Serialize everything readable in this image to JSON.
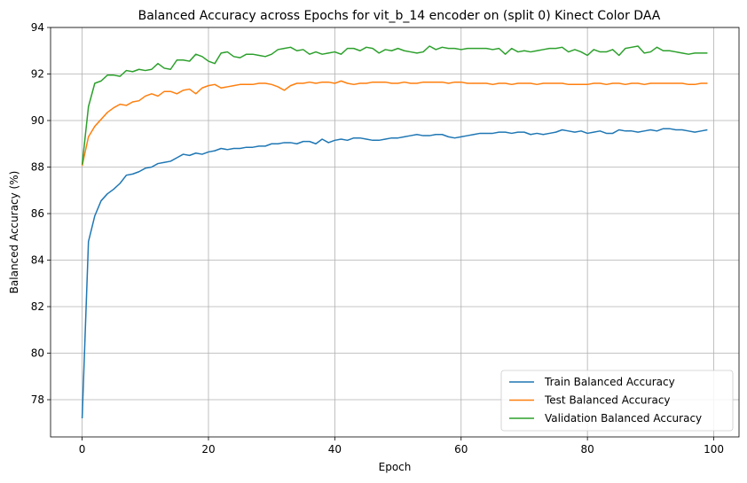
{
  "chart_data": {
    "type": "line",
    "title": "Balanced Accuracy across Epochs for vit_b_14 encoder on (split 0) Kinect Color DAA",
    "xlabel": "Epoch",
    "ylabel": "Balanced Accuracy (%)",
    "xlim": [
      -5,
      104
    ],
    "ylim": [
      76.4,
      94
    ],
    "xticks": [
      0,
      20,
      40,
      60,
      80,
      100
    ],
    "yticks": [
      78,
      80,
      82,
      84,
      86,
      88,
      90,
      92,
      94
    ],
    "grid": true,
    "legend_position": "lower-right",
    "colors": {
      "train": "#1f77b4",
      "test": "#ff7f0e",
      "validation": "#2ca02c"
    },
    "series": [
      {
        "name": "Train Balanced Accuracy",
        "key": "train",
        "values": [
          77.2,
          84.8,
          85.9,
          86.55,
          86.85,
          87.05,
          87.3,
          87.65,
          87.7,
          87.8,
          87.95,
          88.0,
          88.15,
          88.2,
          88.25,
          88.4,
          88.55,
          88.5,
          88.6,
          88.55,
          88.65,
          88.7,
          88.8,
          88.75,
          88.8,
          88.8,
          88.85,
          88.85,
          88.9,
          88.9,
          89.0,
          89.0,
          89.05,
          89.05,
          89.0,
          89.1,
          89.1,
          89.0,
          89.2,
          89.05,
          89.15,
          89.2,
          89.15,
          89.25,
          89.25,
          89.2,
          89.15,
          89.15,
          89.2,
          89.25,
          89.25,
          89.3,
          89.35,
          89.4,
          89.35,
          89.35,
          89.4,
          89.4,
          89.3,
          89.25,
          89.3,
          89.35,
          89.4,
          89.45,
          89.45,
          89.45,
          89.5,
          89.5,
          89.45,
          89.5,
          89.5,
          89.4,
          89.45,
          89.4,
          89.45,
          89.5,
          89.6,
          89.55,
          89.5,
          89.55,
          89.45,
          89.5,
          89.55,
          89.45,
          89.45,
          89.6,
          89.55,
          89.55,
          89.5,
          89.55,
          89.6,
          89.55,
          89.65,
          89.65,
          89.6,
          89.6,
          89.55,
          89.5,
          89.55,
          89.6
        ]
      },
      {
        "name": "Test Balanced Accuracy",
        "key": "test",
        "values": [
          88.05,
          89.3,
          89.75,
          90.05,
          90.35,
          90.55,
          90.7,
          90.65,
          90.8,
          90.85,
          91.05,
          91.15,
          91.05,
          91.25,
          91.25,
          91.15,
          91.3,
          91.35,
          91.15,
          91.4,
          91.5,
          91.55,
          91.4,
          91.45,
          91.5,
          91.55,
          91.55,
          91.55,
          91.6,
          91.6,
          91.55,
          91.45,
          91.3,
          91.5,
          91.6,
          91.6,
          91.65,
          91.6,
          91.65,
          91.65,
          91.6,
          91.7,
          91.6,
          91.55,
          91.6,
          91.6,
          91.65,
          91.65,
          91.65,
          91.6,
          91.6,
          91.65,
          91.6,
          91.6,
          91.65,
          91.65,
          91.65,
          91.65,
          91.6,
          91.65,
          91.65,
          91.6,
          91.6,
          91.6,
          91.6,
          91.55,
          91.6,
          91.6,
          91.55,
          91.6,
          91.6,
          91.6,
          91.55,
          91.6,
          91.6,
          91.6,
          91.6,
          91.55,
          91.55,
          91.55,
          91.55,
          91.6,
          91.6,
          91.55,
          91.6,
          91.6,
          91.55,
          91.6,
          91.6,
          91.55,
          91.6,
          91.6,
          91.6,
          91.6,
          91.6,
          91.6,
          91.55,
          91.55,
          91.6,
          91.6
        ]
      },
      {
        "name": "Validation Balanced Accuracy",
        "key": "validation",
        "values": [
          88.1,
          90.6,
          91.6,
          91.7,
          91.95,
          91.95,
          91.9,
          92.15,
          92.1,
          92.2,
          92.15,
          92.2,
          92.45,
          92.25,
          92.2,
          92.6,
          92.6,
          92.55,
          92.85,
          92.75,
          92.55,
          92.45,
          92.9,
          92.95,
          92.75,
          92.7,
          92.85,
          92.85,
          92.8,
          92.75,
          92.85,
          93.05,
          93.1,
          93.15,
          93.0,
          93.05,
          92.85,
          92.95,
          92.85,
          92.9,
          92.95,
          92.85,
          93.1,
          93.1,
          93.0,
          93.15,
          93.1,
          92.9,
          93.05,
          93.0,
          93.1,
          93.0,
          92.95,
          92.9,
          92.95,
          93.2,
          93.05,
          93.15,
          93.1,
          93.1,
          93.05,
          93.1,
          93.1,
          93.1,
          93.1,
          93.05,
          93.1,
          92.85,
          93.1,
          92.95,
          93.0,
          92.95,
          93.0,
          93.05,
          93.1,
          93.1,
          93.15,
          92.95,
          93.05,
          92.95,
          92.8,
          93.05,
          92.95,
          92.95,
          93.05,
          92.8,
          93.1,
          93.15,
          93.2,
          92.9,
          92.95,
          93.15,
          93.0,
          93.0,
          92.95,
          92.9,
          92.85,
          92.9,
          92.9,
          92.9
        ]
      }
    ]
  }
}
